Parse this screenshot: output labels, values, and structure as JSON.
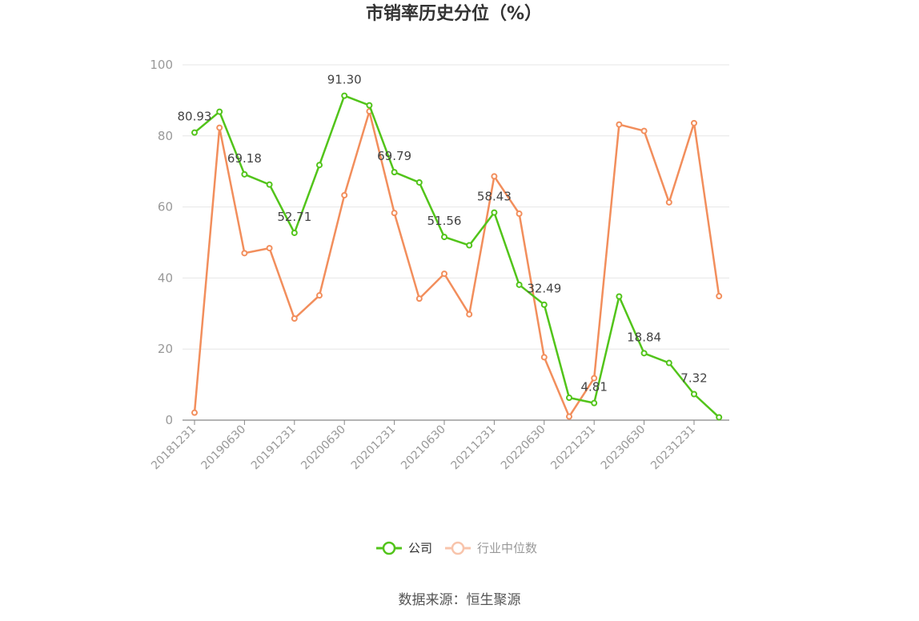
{
  "chart_data": {
    "type": "line",
    "title": "市销率历史分位（%）",
    "ylim": [
      0,
      100
    ],
    "yticks": [
      0,
      20,
      40,
      60,
      80,
      100
    ],
    "grid": true,
    "legend_position": "bottom-center",
    "x": [
      "20181231",
      "20190331",
      "20190630",
      "20190930",
      "20191231",
      "20200331",
      "20200630",
      "20200930",
      "20201231",
      "20210331",
      "20210630",
      "20210930",
      "20211231",
      "20220331",
      "20220630",
      "20220930",
      "20221231",
      "20230331",
      "20230630",
      "20230930",
      "20231231",
      "20240331"
    ],
    "x_tick_labels": [
      "20181231",
      "20190630",
      "20191231",
      "20200630",
      "20201231",
      "20210630",
      "20211231",
      "20220630",
      "20221231",
      "20230630",
      "20231231"
    ],
    "series": [
      {
        "name": "公司",
        "color": "#52c41a",
        "values": [
          80.93,
          86.8,
          69.18,
          66.3,
          52.71,
          71.8,
          91.3,
          88.6,
          69.79,
          66.9,
          51.56,
          49.2,
          58.43,
          38.1,
          32.49,
          6.3,
          4.81,
          34.8,
          18.84,
          16.1,
          7.32,
          0.8
        ],
        "data_labels": {
          "0": "80.93",
          "2": "69.18",
          "4": "52.71",
          "6": "91.30",
          "8": "69.79",
          "10": "51.56",
          "12": "58.43",
          "14": "32.49",
          "16": "4.81",
          "18": "18.84",
          "20": "7.32"
        }
      },
      {
        "name": "行业中位数",
        "color": "#f28e5c",
        "values": [
          2.1,
          82.3,
          47.0,
          48.4,
          28.6,
          35.1,
          63.3,
          86.9,
          58.3,
          34.2,
          41.2,
          29.8,
          68.6,
          58.1,
          17.7,
          1.0,
          11.8,
          83.2,
          81.4,
          61.3,
          83.6,
          34.9
        ]
      }
    ]
  },
  "source": "数据来源：恒生聚源"
}
